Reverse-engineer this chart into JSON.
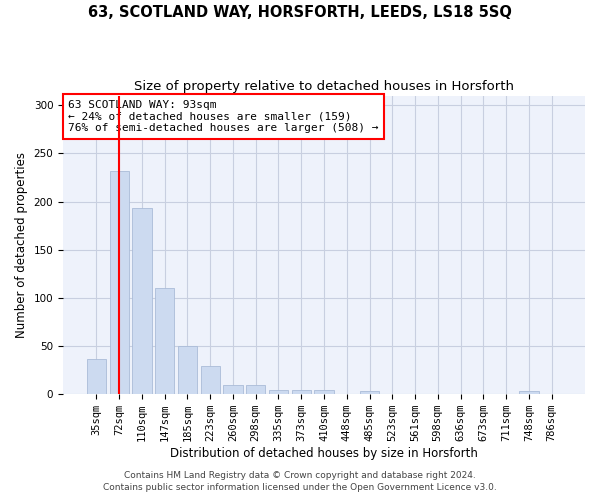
{
  "title": "63, SCOTLAND WAY, HORSFORTH, LEEDS, LS18 5SQ",
  "subtitle": "Size of property relative to detached houses in Horsforth",
  "xlabel": "Distribution of detached houses by size in Horsforth",
  "ylabel": "Number of detached properties",
  "bin_labels": [
    "35sqm",
    "72sqm",
    "110sqm",
    "147sqm",
    "185sqm",
    "223sqm",
    "260sqm",
    "298sqm",
    "335sqm",
    "373sqm",
    "410sqm",
    "448sqm",
    "485sqm",
    "523sqm",
    "561sqm",
    "598sqm",
    "636sqm",
    "673sqm",
    "711sqm",
    "748sqm",
    "786sqm"
  ],
  "bar_heights": [
    37,
    232,
    193,
    110,
    50,
    29,
    10,
    10,
    4,
    4,
    4,
    0,
    3,
    0,
    0,
    0,
    0,
    0,
    0,
    3,
    0
  ],
  "bar_color": "#ccdaf0",
  "bar_edge_color": "#aabcd8",
  "red_line_bin": 1,
  "annotation_text": "63 SCOTLAND WAY: 93sqm\n← 24% of detached houses are smaller (159)\n76% of semi-detached houses are larger (508) →",
  "annotation_box_color": "white",
  "annotation_box_edge_color": "red",
  "ylim": [
    0,
    310
  ],
  "yticks": [
    0,
    50,
    100,
    150,
    200,
    250,
    300
  ],
  "footer_line1": "Contains HM Land Registry data © Crown copyright and database right 2024.",
  "footer_line2": "Contains public sector information licensed under the Open Government Licence v3.0.",
  "bg_color": "#eef2fb",
  "grid_color": "#c8cfe0",
  "title_fontsize": 10.5,
  "subtitle_fontsize": 9.5,
  "axis_label_fontsize": 8.5,
  "tick_fontsize": 7.5,
  "annotation_fontsize": 8,
  "footer_fontsize": 6.5
}
